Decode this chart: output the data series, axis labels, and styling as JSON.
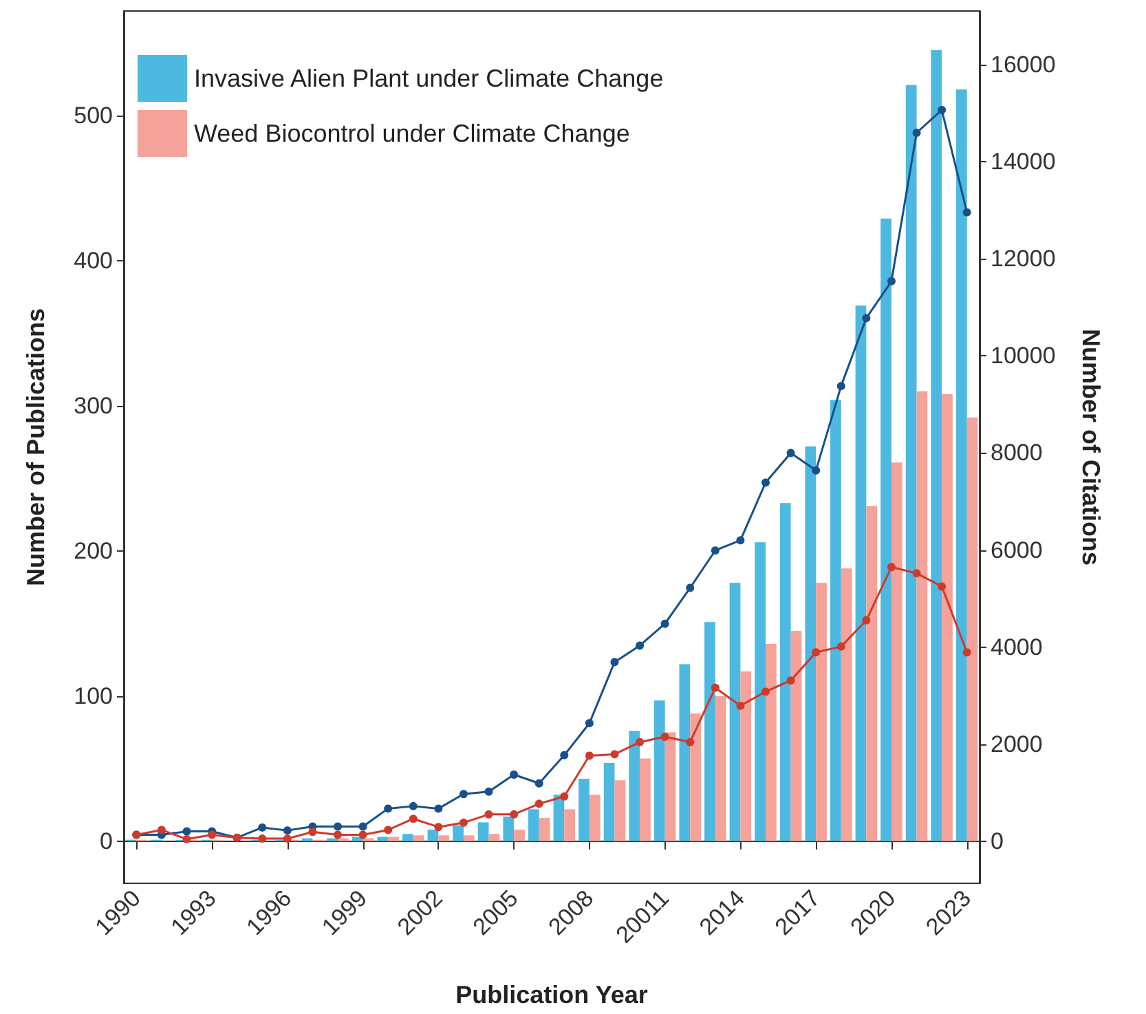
{
  "chart_data": {
    "type": "bar",
    "xlabel": "Publication Year",
    "ylabel": "Number of Publications",
    "y2label": "Number of Citations",
    "categories": [
      "1990",
      null,
      null,
      "1993",
      null,
      null,
      "1996",
      null,
      null,
      "1999",
      null,
      null,
      "2002",
      null,
      null,
      "2005",
      null,
      null,
      "2008",
      null,
      null,
      "20011",
      null,
      null,
      "2014",
      null,
      null,
      "2017",
      null,
      null,
      "2020",
      null,
      null,
      "2023"
    ],
    "series": [
      {
        "name": "Invasive Alien Plant under Climate Change",
        "color": "#4db8e0",
        "values": [
          1,
          1,
          1,
          1,
          0,
          1,
          1,
          2,
          2,
          3,
          3,
          5,
          8,
          11,
          13,
          17,
          22,
          32,
          43,
          54,
          76,
          97,
          122,
          151,
          178,
          206,
          233,
          272,
          304,
          369,
          429,
          521,
          545,
          518
        ]
      },
      {
        "name": "Weed Biocontrol under Climate Change",
        "color": "#f5a39a",
        "values": [
          1,
          0,
          1,
          1,
          0,
          0,
          1,
          1,
          2,
          2,
          3,
          4,
          4,
          4,
          5,
          8,
          16,
          22,
          32,
          42,
          57,
          75,
          88,
          100,
          117,
          136,
          145,
          178,
          188,
          231,
          261,
          310,
          308,
          292
        ]
      },
      {
        "type": "line",
        "axis": "y2",
        "color": "#17508a",
        "values": [
          130,
          130,
          200,
          200,
          70,
          280,
          220,
          300,
          300,
          300,
          670,
          720,
          670,
          970,
          1020,
          1370,
          1190,
          1770,
          2430,
          3690,
          4030,
          4480,
          5220,
          5990,
          6200,
          7390,
          8000,
          7640,
          9380,
          10780,
          11540,
          14600,
          15070,
          12960
        ]
      },
      {
        "type": "line",
        "axis": "y2",
        "color": "#cf3a2a",
        "values": [
          130,
          230,
          40,
          130,
          70,
          50,
          50,
          190,
          130,
          130,
          230,
          460,
          290,
          380,
          550,
          550,
          770,
          920,
          1760,
          1790,
          2040,
          2150,
          2040,
          3160,
          2790,
          3080,
          3310,
          3890,
          4010,
          4550,
          5650,
          5520,
          5250,
          3890
        ]
      }
    ],
    "ylim": [
      -29,
      572
    ],
    "yticks": [
      0,
      100,
      200,
      300,
      400,
      500
    ],
    "y2lim": [
      -870,
      17110
    ],
    "y2ticks": [
      0,
      2000,
      4000,
      6000,
      8000,
      10000,
      12000,
      14000,
      16000
    ],
    "legend": "top left",
    "marker": "circle"
  }
}
